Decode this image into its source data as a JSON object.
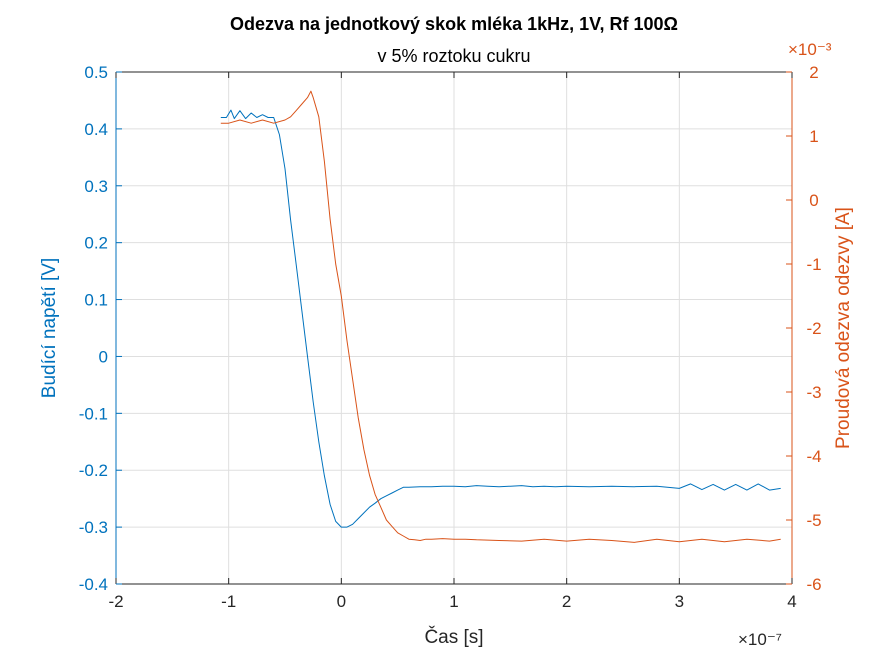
{
  "chart_data": {
    "type": "line",
    "title": "Odezva na jednotkový skok mléka 1kHz, 1V, Rf 100Ω",
    "subtitle": "v 5% roztoku cukru",
    "xlabel": "Čas [s]",
    "ylabel_left": "Budící napětí [V]",
    "ylabel_right": "Proudová odezva odezvy [A]",
    "x_exponent": "×10⁻⁷",
    "y_right_exponent": "×10⁻³",
    "xlim": [
      -2,
      4
    ],
    "ylim_left": [
      -0.4,
      0.5
    ],
    "ylim_right": [
      -6,
      2
    ],
    "x_ticks": [
      "-2",
      "-1",
      "0",
      "1",
      "2",
      "3",
      "4"
    ],
    "y_left_ticks": [
      "0.5",
      "0.4",
      "0.3",
      "0.2",
      "0.1",
      "0",
      "-0.1",
      "-0.2",
      "-0.3",
      "-0.4"
    ],
    "y_right_ticks": [
      "2",
      "1",
      "0",
      "-1",
      "-2",
      "-3",
      "-4",
      "-5",
      "-6"
    ],
    "grid": true,
    "colors": {
      "left": "#0072bd",
      "right": "#d95319"
    },
    "series": [
      {
        "axis": "left",
        "x": [
          -1.07,
          -1.02,
          -0.98,
          -0.95,
          -0.9,
          -0.85,
          -0.8,
          -0.75,
          -0.7,
          -0.65,
          -0.6,
          -0.55,
          -0.5,
          -0.45,
          -0.4,
          -0.35,
          -0.3,
          -0.25,
          -0.2,
          -0.15,
          -0.1,
          -0.05,
          0.0,
          0.05,
          0.1,
          0.15,
          0.2,
          0.25,
          0.3,
          0.35,
          0.4,
          0.45,
          0.5,
          0.55,
          0.6,
          0.7,
          0.8,
          0.9,
          1.0,
          1.1,
          1.2,
          1.3,
          1.4,
          1.5,
          1.6,
          1.7,
          1.8,
          1.9,
          2.0,
          2.2,
          2.4,
          2.6,
          2.8,
          3.0,
          3.1,
          3.2,
          3.3,
          3.4,
          3.5,
          3.6,
          3.7,
          3.8,
          3.9
        ],
        "y": [
          0.42,
          0.42,
          0.433,
          0.418,
          0.432,
          0.418,
          0.428,
          0.42,
          0.425,
          0.42,
          0.42,
          0.39,
          0.33,
          0.24,
          0.16,
          0.08,
          0.0,
          -0.08,
          -0.15,
          -0.21,
          -0.26,
          -0.29,
          -0.3,
          -0.3,
          -0.295,
          -0.285,
          -0.275,
          -0.265,
          -0.258,
          -0.25,
          -0.245,
          -0.24,
          -0.235,
          -0.23,
          -0.23,
          -0.229,
          -0.229,
          -0.228,
          -0.228,
          -0.229,
          -0.227,
          -0.228,
          -0.229,
          -0.228,
          -0.227,
          -0.229,
          -0.228,
          -0.229,
          -0.228,
          -0.229,
          -0.228,
          -0.229,
          -0.228,
          -0.232,
          -0.224,
          -0.234,
          -0.225,
          -0.235,
          -0.225,
          -0.235,
          -0.224,
          -0.235,
          -0.232
        ]
      },
      {
        "axis": "right",
        "x": [
          -1.07,
          -1.0,
          -0.9,
          -0.8,
          -0.7,
          -0.6,
          -0.5,
          -0.45,
          -0.4,
          -0.35,
          -0.3,
          -0.27,
          -0.25,
          -0.2,
          -0.15,
          -0.1,
          -0.05,
          0.0,
          0.05,
          0.1,
          0.15,
          0.2,
          0.25,
          0.3,
          0.35,
          0.4,
          0.45,
          0.5,
          0.55,
          0.6,
          0.65,
          0.7,
          0.75,
          0.8,
          0.9,
          1.0,
          1.1,
          1.2,
          1.4,
          1.6,
          1.8,
          2.0,
          2.2,
          2.4,
          2.6,
          2.8,
          3.0,
          3.2,
          3.4,
          3.6,
          3.8,
          3.9
        ],
        "y": [
          1.2,
          1.2,
          1.25,
          1.2,
          1.25,
          1.2,
          1.25,
          1.3,
          1.4,
          1.5,
          1.6,
          1.7,
          1.6,
          1.3,
          0.6,
          -0.3,
          -1.0,
          -1.5,
          -2.2,
          -2.8,
          -3.4,
          -3.9,
          -4.3,
          -4.6,
          -4.8,
          -5.0,
          -5.1,
          -5.2,
          -5.25,
          -5.3,
          -5.31,
          -5.32,
          -5.3,
          -5.3,
          -5.29,
          -5.3,
          -5.3,
          -5.31,
          -5.32,
          -5.33,
          -5.3,
          -5.33,
          -5.3,
          -5.32,
          -5.35,
          -5.3,
          -5.34,
          -5.3,
          -5.34,
          -5.3,
          -5.33,
          -5.3
        ]
      }
    ]
  }
}
